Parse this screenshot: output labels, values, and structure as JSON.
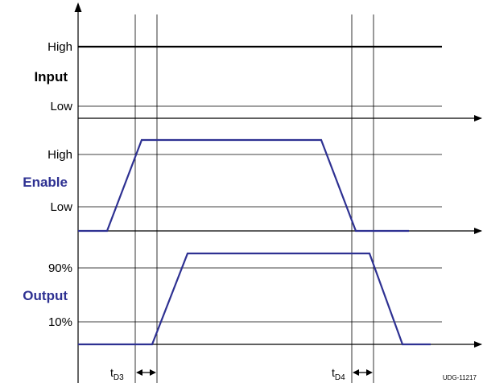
{
  "colors": {
    "black": "#000000",
    "blue": "#2e3192",
    "grid": "#000000"
  },
  "input": {
    "name": "Input",
    "high": "High",
    "low": "Low"
  },
  "enable": {
    "name": "Enable",
    "high": "High",
    "low": "Low"
  },
  "output": {
    "name": "Output",
    "high": "90%",
    "low": "10%"
  },
  "timing": {
    "td3": {
      "main": "t",
      "sub": "D3"
    },
    "td4": {
      "main": "t",
      "sub": "D4"
    }
  },
  "drawing_code": "UDG-11217"
}
